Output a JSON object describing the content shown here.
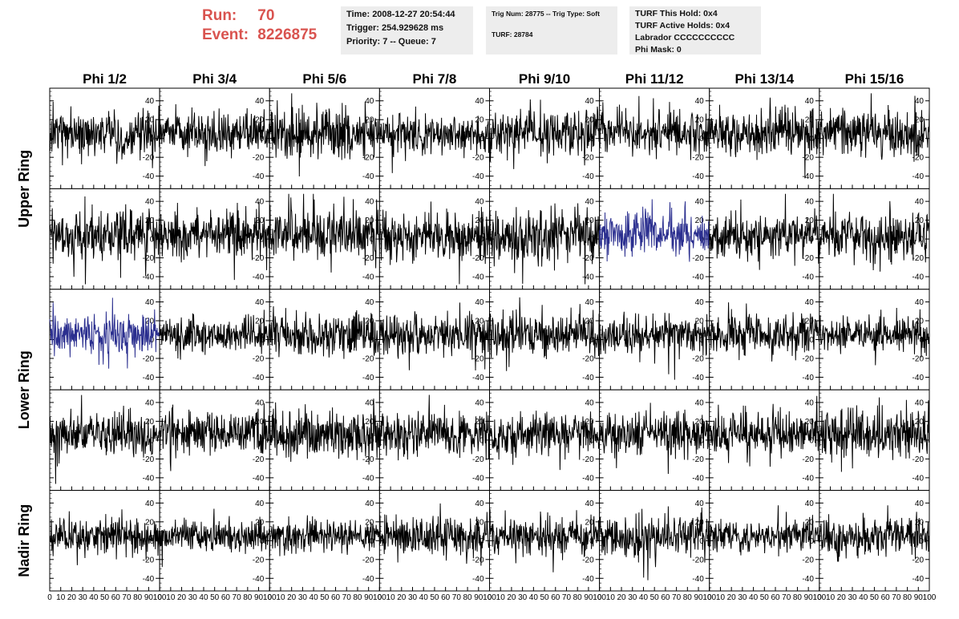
{
  "header": {
    "run_label": "Run:",
    "run_value": "70",
    "event_label": "Event:",
    "event_value": "8226875",
    "time": "Time: 2008-12-27 20:54:44",
    "trigger": "Trigger: 254.929628 ms",
    "priority": "Priority: 7 -- Queue: 7",
    "trig_num": "Trig Num: 28775 -- Trig Type: Soft",
    "turf": "TURF: 28784",
    "turf_this_hold": "TURF This Hold: 0x4",
    "turf_active_holds": "TURF Active Holds: 0x4",
    "labrador": "Labrador CCCCCCCCCC",
    "phi_mask": "Phi Mask: 0"
  },
  "colors": {
    "header_red": "#d9534f",
    "trace_black": "#000000",
    "trace_highlight": "#2b2f8f",
    "info_bg": "#ededed"
  },
  "chart_data": {
    "type": "line",
    "columns": [
      "Phi 1/2",
      "Phi 3/4",
      "Phi 5/6",
      "Phi 7/8",
      "Phi 9/10",
      "Phi 11/12",
      "Phi 13/14",
      "Phi 15/16"
    ],
    "rows": [
      "Upper Ring",
      "Upper Ring",
      "Lower Ring",
      "Lower Ring",
      "Nadir Ring"
    ],
    "row_labels": [
      {
        "label": "Upper Ring",
        "spans_rows": [
          0,
          1
        ]
      },
      {
        "label": "Lower Ring",
        "spans_rows": [
          2,
          3
        ]
      },
      {
        "label": "Nadir Ring",
        "spans_rows": [
          4
        ]
      }
    ],
    "xlim": [
      0,
      100
    ],
    "ylim": [
      -50,
      50
    ],
    "x_ticks": [
      0,
      10,
      20,
      30,
      40,
      50,
      60,
      70,
      80,
      90,
      100
    ],
    "x_tick_labels": [
      "0",
      "10",
      "20",
      "30",
      "40",
      "50",
      "60",
      "70",
      "80",
      "90",
      "100"
    ],
    "y_ticks": [
      -40,
      -20,
      0,
      20,
      40
    ],
    "y_tick_labels": [
      "-40",
      "-20",
      "0",
      "20",
      "40"
    ],
    "samples": 260,
    "cells": [
      {
        "row": 0,
        "col": 0,
        "color": "#000000",
        "amplitude": 12,
        "offset": 5,
        "seed": 1
      },
      {
        "row": 0,
        "col": 1,
        "color": "#000000",
        "amplitude": 11,
        "offset": 6,
        "seed": 2
      },
      {
        "row": 0,
        "col": 2,
        "color": "#000000",
        "amplitude": 13,
        "offset": 5,
        "seed": 3
      },
      {
        "row": 0,
        "col": 3,
        "color": "#000000",
        "amplitude": 10,
        "offset": 4,
        "seed": 4
      },
      {
        "row": 0,
        "col": 4,
        "color": "#000000",
        "amplitude": 11,
        "offset": 6,
        "seed": 5
      },
      {
        "row": 0,
        "col": 5,
        "color": "#000000",
        "amplitude": 10,
        "offset": 6,
        "seed": 6
      },
      {
        "row": 0,
        "col": 6,
        "color": "#000000",
        "amplitude": 12,
        "offset": 5,
        "seed": 7
      },
      {
        "row": 0,
        "col": 7,
        "color": "#000000",
        "amplitude": 12,
        "offset": 6,
        "seed": 8
      },
      {
        "row": 1,
        "col": 0,
        "color": "#000000",
        "amplitude": 13,
        "offset": 4,
        "seed": 9
      },
      {
        "row": 1,
        "col": 1,
        "color": "#000000",
        "amplitude": 13,
        "offset": 4,
        "seed": 10
      },
      {
        "row": 1,
        "col": 2,
        "color": "#000000",
        "amplitude": 12,
        "offset": 5,
        "seed": 11
      },
      {
        "row": 1,
        "col": 3,
        "color": "#000000",
        "amplitude": 12,
        "offset": 3,
        "seed": 12
      },
      {
        "row": 1,
        "col": 4,
        "color": "#000000",
        "amplitude": 13,
        "offset": 4,
        "seed": 13
      },
      {
        "row": 1,
        "col": 5,
        "color": "#2b2f8f",
        "amplitude": 11,
        "offset": 6,
        "seed": 14
      },
      {
        "row": 1,
        "col": 6,
        "color": "#000000",
        "amplitude": 12,
        "offset": 4,
        "seed": 15
      },
      {
        "row": 1,
        "col": 7,
        "color": "#000000",
        "amplitude": 12,
        "offset": 3,
        "seed": 16
      },
      {
        "row": 2,
        "col": 0,
        "color": "#2b2f8f",
        "amplitude": 10,
        "offset": 6,
        "seed": 17
      },
      {
        "row": 2,
        "col": 1,
        "color": "#000000",
        "amplitude": 9,
        "offset": 5,
        "seed": 18
      },
      {
        "row": 2,
        "col": 2,
        "color": "#000000",
        "amplitude": 11,
        "offset": 5,
        "seed": 19
      },
      {
        "row": 2,
        "col": 3,
        "color": "#000000",
        "amplitude": 11,
        "offset": 5,
        "seed": 20
      },
      {
        "row": 2,
        "col": 4,
        "color": "#000000",
        "amplitude": 11,
        "offset": 5,
        "seed": 21
      },
      {
        "row": 2,
        "col": 5,
        "color": "#000000",
        "amplitude": 10,
        "offset": 5,
        "seed": 22
      },
      {
        "row": 2,
        "col": 6,
        "color": "#000000",
        "amplitude": 10,
        "offset": 5,
        "seed": 23
      },
      {
        "row": 2,
        "col": 7,
        "color": "#000000",
        "amplitude": 9,
        "offset": 5,
        "seed": 24
      },
      {
        "row": 3,
        "col": 0,
        "color": "#000000",
        "amplitude": 11,
        "offset": 6,
        "seed": 25
      },
      {
        "row": 3,
        "col": 1,
        "color": "#000000",
        "amplitude": 11,
        "offset": 7,
        "seed": 26
      },
      {
        "row": 3,
        "col": 2,
        "color": "#000000",
        "amplitude": 12,
        "offset": 6,
        "seed": 27
      },
      {
        "row": 3,
        "col": 3,
        "color": "#000000",
        "amplitude": 11,
        "offset": 6,
        "seed": 28
      },
      {
        "row": 3,
        "col": 4,
        "color": "#000000",
        "amplitude": 11,
        "offset": 6,
        "seed": 29
      },
      {
        "row": 3,
        "col": 5,
        "color": "#000000",
        "amplitude": 11,
        "offset": 6,
        "seed": 30
      },
      {
        "row": 3,
        "col": 6,
        "color": "#000000",
        "amplitude": 11,
        "offset": 7,
        "seed": 31
      },
      {
        "row": 3,
        "col": 7,
        "color": "#000000",
        "amplitude": 13,
        "offset": 6,
        "seed": 32
      },
      {
        "row": 4,
        "col": 0,
        "color": "#000000",
        "amplitude": 9,
        "offset": 5,
        "seed": 33
      },
      {
        "row": 4,
        "col": 1,
        "color": "#000000",
        "amplitude": 8,
        "offset": 5,
        "seed": 34
      },
      {
        "row": 4,
        "col": 2,
        "color": "#000000",
        "amplitude": 8,
        "offset": 5,
        "seed": 35
      },
      {
        "row": 4,
        "col": 3,
        "color": "#000000",
        "amplitude": 10,
        "offset": 5,
        "seed": 36
      },
      {
        "row": 4,
        "col": 4,
        "color": "#000000",
        "amplitude": 9,
        "offset": 5,
        "seed": 37
      },
      {
        "row": 4,
        "col": 5,
        "color": "#000000",
        "amplitude": 11,
        "offset": 5,
        "seed": 38
      },
      {
        "row": 4,
        "col": 6,
        "color": "#000000",
        "amplitude": 8,
        "offset": 5,
        "seed": 39
      },
      {
        "row": 4,
        "col": 7,
        "color": "#000000",
        "amplitude": 10,
        "offset": 5,
        "seed": 40
      }
    ]
  }
}
